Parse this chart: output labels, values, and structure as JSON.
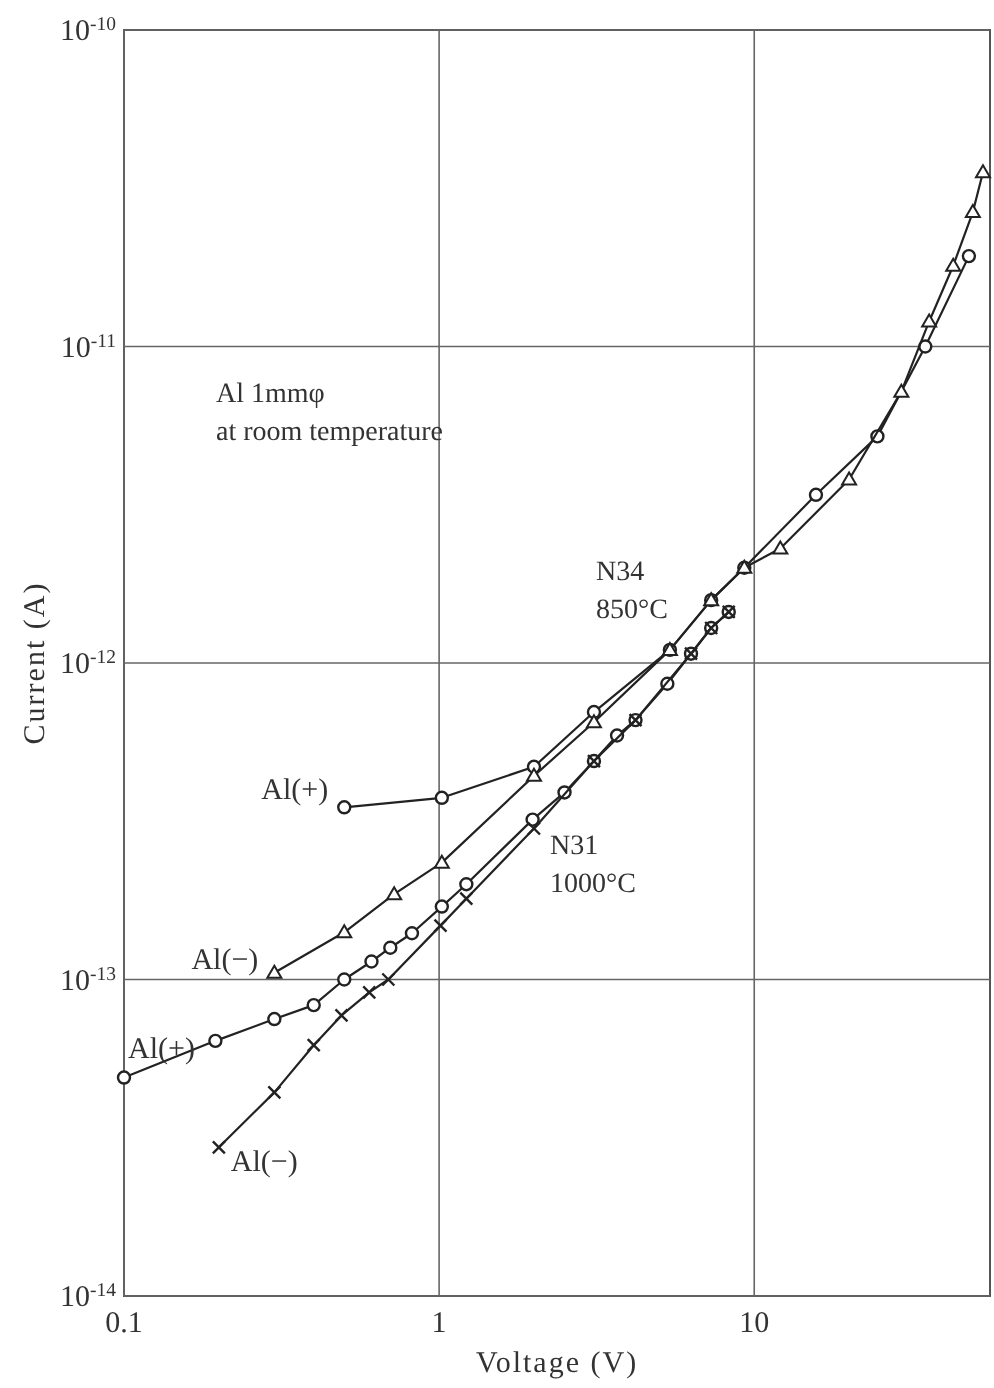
{
  "chart_data": {
    "type": "line",
    "xlabel": "Voltage (V)",
    "ylabel": "Current (A)",
    "log": "xy",
    "grid": true,
    "xlim": [
      0.1,
      56
    ],
    "xticks": [
      0.1,
      1,
      10
    ],
    "ylim": [
      1e-14,
      1e-10
    ],
    "yticks": [
      {
        "value": 1e-14,
        "label": "10$^{-14}$"
      },
      {
        "value": 1e-13,
        "label": "10$^{-13}$"
      },
      {
        "value": 1e-12,
        "label": "10$^{-12}$"
      },
      {
        "value": 1e-11,
        "label": "10$^{-11}$"
      },
      {
        "value": 1e-10,
        "label": "10$^{-10}$"
      }
    ],
    "annotations": [
      "Al 1mmφ\nat room temperature",
      "N34\n850°C",
      "N31\n1000°C"
    ],
    "series": [
      {
        "name": "Al(+)",
        "color": "#222222",
        "marker": "circle",
        "x": [
          0.5,
          1.02,
          2.0,
          3.1,
          5.4,
          7.3,
          9.3,
          15.7,
          24.6,
          34.9,
          48
        ],
        "values": [
          3.5e-13,
          3.75e-13,
          4.7e-13,
          7e-13,
          1.1e-12,
          1.58e-12,
          2e-12,
          3.4e-12,
          5.2e-12,
          1e-11,
          1.93e-11
        ]
      },
      {
        "name": "Al(−)",
        "color": "#222222",
        "marker": "triangle",
        "x": [
          0.3,
          0.5,
          0.72,
          1.02,
          2.0,
          3.1,
          5.4,
          7.3,
          9.3,
          12.1,
          20,
          29.3,
          35.9,
          42.8,
          49.4,
          53.2
        ],
        "values": [
          1.05e-13,
          1.41e-13,
          1.86e-13,
          2.34e-13,
          4.4e-13,
          6.5e-13,
          1.1e-12,
          1.58e-12,
          2e-12,
          2.3e-12,
          3.8e-12,
          7.2e-12,
          1.2e-11,
          1.8e-11,
          2.66e-11,
          3.55e-11
        ]
      },
      {
        "name": "Al(+)",
        "color": "#222222",
        "marker": "circle",
        "x": [
          0.1,
          0.195,
          0.3,
          0.4,
          0.5,
          0.61,
          0.7,
          0.82,
          1.02,
          1.22,
          1.98,
          2.5,
          3.1,
          3.67,
          4.2,
          5.3,
          6.3,
          7.3,
          8.3
        ],
        "values": [
          4.9e-14,
          6.4e-14,
          7.5e-14,
          8.3e-14,
          1e-13,
          1.14e-13,
          1.26e-13,
          1.4e-13,
          1.7e-13,
          2e-13,
          3.2e-13,
          3.9e-13,
          4.9e-13,
          5.9e-13,
          6.6e-13,
          8.6e-13,
          1.07e-12,
          1.29e-12,
          1.45e-12
        ]
      },
      {
        "name": "Al(−)",
        "color": "#222222",
        "marker": "cross",
        "x": [
          0.2,
          0.3,
          0.4,
          0.49,
          0.6,
          0.69,
          1.01,
          1.22,
          2.0,
          3.1,
          4.2,
          6.3,
          7.3,
          8.3
        ],
        "values": [
          2.95e-14,
          4.4e-14,
          6.2e-14,
          7.7e-14,
          9.1e-14,
          1e-13,
          1.48e-13,
          1.8e-13,
          3e-13,
          4.9e-13,
          6.6e-13,
          1.07e-12,
          1.29e-12,
          1.45e-12
        ]
      }
    ]
  }
}
